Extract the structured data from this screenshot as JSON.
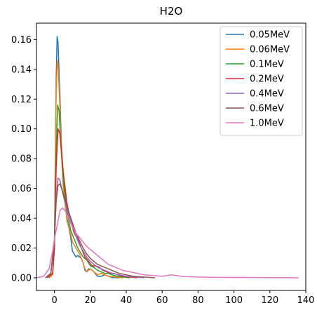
{
  "chart_data": {
    "type": "line",
    "title": "H2O",
    "xlabel": "",
    "ylabel": "",
    "xlim": [
      -10,
      140
    ],
    "ylim": [
      -0.0085,
      0.171
    ],
    "xticks": [
      0,
      20,
      40,
      60,
      80,
      100,
      120,
      140
    ],
    "yticks": [
      0.0,
      0.02,
      0.04,
      0.06,
      0.08,
      0.1,
      0.12,
      0.14,
      0.16
    ],
    "xtick_labels": [
      "0",
      "20",
      "40",
      "60",
      "80",
      "100",
      "120",
      "140"
    ],
    "ytick_labels": [
      "0.00",
      "0.02",
      "0.04",
      "0.06",
      "0.08",
      "0.10",
      "0.12",
      "0.14",
      "0.16"
    ],
    "grid": false,
    "legend_position": "top-right",
    "series": [
      {
        "name": "0.05MeV",
        "color": "#1f77b4",
        "points": [
          [
            -3,
            0
          ],
          [
            -1,
            0.002
          ],
          [
            0,
            0.02
          ],
          [
            0.5,
            0.08
          ],
          [
            1,
            0.135
          ],
          [
            1.5,
            0.162
          ],
          [
            2,
            0.158
          ],
          [
            3,
            0.125
          ],
          [
            4,
            0.085
          ],
          [
            5,
            0.06
          ],
          [
            7,
            0.04
          ],
          [
            9,
            0.028
          ],
          [
            10,
            0.018
          ],
          [
            12,
            0.014
          ],
          [
            13,
            0.015
          ],
          [
            15,
            0.013
          ],
          [
            16,
            0.01
          ],
          [
            17,
            0.005
          ],
          [
            18,
            0.004
          ],
          [
            19,
            0.006
          ],
          [
            20,
            0.006
          ],
          [
            22,
            0.004
          ],
          [
            24,
            0.001
          ],
          [
            26,
            0.001
          ],
          [
            28,
            0.002
          ],
          [
            30,
            0.001
          ],
          [
            32,
            0.0002
          ],
          [
            36,
            0
          ]
        ]
      },
      {
        "name": "0.06MeV",
        "color": "#ff7f0e",
        "points": [
          [
            -3,
            0
          ],
          [
            -1,
            0.002
          ],
          [
            0,
            0.02
          ],
          [
            0.5,
            0.075
          ],
          [
            1,
            0.125
          ],
          [
            1.6,
            0.146
          ],
          [
            2.2,
            0.14
          ],
          [
            3,
            0.115
          ],
          [
            4,
            0.082
          ],
          [
            5,
            0.06
          ],
          [
            7,
            0.038
          ],
          [
            9,
            0.03
          ],
          [
            10,
            0.024
          ],
          [
            12,
            0.02
          ],
          [
            14,
            0.016
          ],
          [
            16,
            0.01
          ],
          [
            17,
            0.006
          ],
          [
            18,
            0.004
          ],
          [
            20,
            0.006
          ],
          [
            22,
            0.004
          ],
          [
            24,
            0.002
          ],
          [
            26,
            0.003
          ],
          [
            28,
            0.002
          ],
          [
            30,
            0.001
          ],
          [
            34,
            0.0005
          ],
          [
            38,
            0
          ]
        ]
      },
      {
        "name": "0.1MeV",
        "color": "#2ca02c",
        "points": [
          [
            -4,
            0
          ],
          [
            -1,
            0.003
          ],
          [
            0,
            0.02
          ],
          [
            1,
            0.085
          ],
          [
            1.8,
            0.116
          ],
          [
            2.6,
            0.112
          ],
          [
            3.5,
            0.09
          ],
          [
            5,
            0.065
          ],
          [
            7,
            0.045
          ],
          [
            9,
            0.032
          ],
          [
            11,
            0.026
          ],
          [
            13,
            0.02
          ],
          [
            15,
            0.016
          ],
          [
            16,
            0.014
          ],
          [
            18,
            0.012
          ],
          [
            20,
            0.008
          ],
          [
            22,
            0.007
          ],
          [
            24,
            0.005
          ],
          [
            26,
            0.004
          ],
          [
            28,
            0.003
          ],
          [
            30,
            0.003
          ],
          [
            32,
            0.002
          ],
          [
            35,
            0.001
          ],
          [
            38,
            0.0005
          ],
          [
            42,
            0
          ]
        ]
      },
      {
        "name": "0.2MeV",
        "color": "#d62728",
        "points": [
          [
            -4,
            0
          ],
          [
            -1,
            0.003
          ],
          [
            0,
            0.02
          ],
          [
            1,
            0.075
          ],
          [
            2,
            0.1
          ],
          [
            3,
            0.097
          ],
          [
            4,
            0.085
          ],
          [
            5,
            0.07
          ],
          [
            7,
            0.05
          ],
          [
            9,
            0.038
          ],
          [
            11,
            0.03
          ],
          [
            13,
            0.026
          ],
          [
            15,
            0.02
          ],
          [
            17,
            0.014
          ],
          [
            19,
            0.011
          ],
          [
            21,
            0.008
          ],
          [
            23,
            0.008
          ],
          [
            25,
            0.007
          ],
          [
            27,
            0.005
          ],
          [
            29,
            0.004
          ],
          [
            31,
            0.003
          ],
          [
            33,
            0.003
          ],
          [
            35,
            0.002
          ],
          [
            38,
            0.001
          ],
          [
            42,
            0.0005
          ],
          [
            46,
            0
          ]
        ]
      },
      {
        "name": "0.4MeV",
        "color": "#9467bd",
        "points": [
          [
            -5,
            0
          ],
          [
            -2,
            0.003
          ],
          [
            0,
            0.025
          ],
          [
            1,
            0.055
          ],
          [
            2,
            0.067
          ],
          [
            3,
            0.066
          ],
          [
            4,
            0.06
          ],
          [
            6,
            0.05
          ],
          [
            8,
            0.042
          ],
          [
            10,
            0.035
          ],
          [
            12,
            0.028
          ],
          [
            14,
            0.022
          ],
          [
            16,
            0.018
          ],
          [
            18,
            0.014
          ],
          [
            20,
            0.011
          ],
          [
            22,
            0.009
          ],
          [
            24,
            0.007
          ],
          [
            26,
            0.006
          ],
          [
            28,
            0.005
          ],
          [
            30,
            0.004
          ],
          [
            32,
            0.003
          ],
          [
            36,
            0.002
          ],
          [
            40,
            0.001
          ],
          [
            45,
            0.0005
          ],
          [
            50,
            0
          ]
        ]
      },
      {
        "name": "0.6MeV",
        "color": "#8c564b",
        "points": [
          [
            -5,
            0
          ],
          [
            -2,
            0.003
          ],
          [
            0,
            0.025
          ],
          [
            1,
            0.052
          ],
          [
            2,
            0.062
          ],
          [
            3,
            0.063
          ],
          [
            4,
            0.06
          ],
          [
            6,
            0.052
          ],
          [
            8,
            0.044
          ],
          [
            10,
            0.037
          ],
          [
            12,
            0.03
          ],
          [
            14,
            0.025
          ],
          [
            16,
            0.02
          ],
          [
            18,
            0.016
          ],
          [
            20,
            0.013
          ],
          [
            22,
            0.011
          ],
          [
            24,
            0.009
          ],
          [
            26,
            0.008
          ],
          [
            28,
            0.007
          ],
          [
            30,
            0.006
          ],
          [
            32,
            0.005
          ],
          [
            34,
            0.004
          ],
          [
            36,
            0.003
          ],
          [
            40,
            0.002
          ],
          [
            44,
            0.001
          ],
          [
            50,
            0.0005
          ],
          [
            56,
            0
          ]
        ]
      },
      {
        "name": "1.0MeV",
        "color": "#e377c2",
        "points": [
          [
            -10,
            0
          ],
          [
            -6,
            0.001
          ],
          [
            -3,
            0.006
          ],
          [
            -1,
            0.018
          ],
          [
            0,
            0.026
          ],
          [
            2,
            0.038
          ],
          [
            3,
            0.045
          ],
          [
            4.5,
            0.047
          ],
          [
            6,
            0.045
          ],
          [
            8,
            0.04
          ],
          [
            10,
            0.034
          ],
          [
            12,
            0.03
          ],
          [
            14,
            0.027
          ],
          [
            16,
            0.024
          ],
          [
            18,
            0.021
          ],
          [
            20,
            0.019
          ],
          [
            22,
            0.017
          ],
          [
            24,
            0.015
          ],
          [
            26,
            0.013
          ],
          [
            28,
            0.011
          ],
          [
            30,
            0.009
          ],
          [
            34,
            0.007
          ],
          [
            38,
            0.005
          ],
          [
            42,
            0.004
          ],
          [
            46,
            0.003
          ],
          [
            50,
            0.002
          ],
          [
            55,
            0.0015
          ],
          [
            60,
            0.001
          ],
          [
            65,
            0.002
          ],
          [
            68,
            0.0015
          ],
          [
            72,
            0.0008
          ],
          [
            80,
            0.0005
          ],
          [
            90,
            0.0003
          ],
          [
            100,
            0.0002
          ],
          [
            110,
            0.0002
          ],
          [
            120,
            0.0001
          ],
          [
            130,
            0.0001
          ],
          [
            136,
            0
          ]
        ]
      }
    ]
  }
}
